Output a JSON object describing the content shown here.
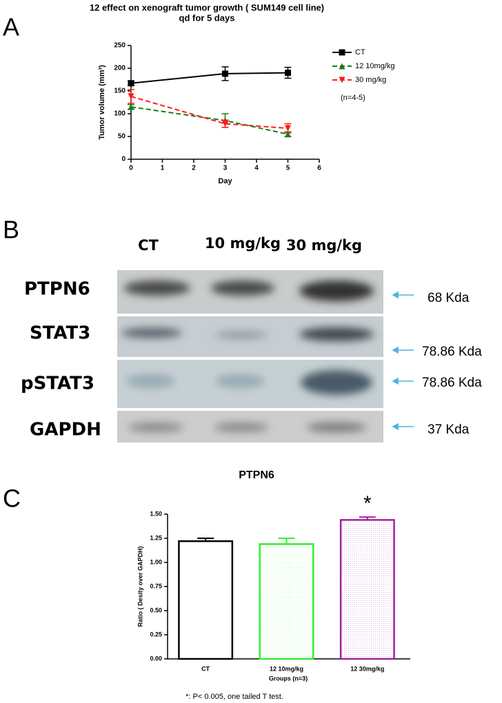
{
  "panel_labels": [
    "A",
    "B",
    "C"
  ],
  "chart_data": [
    {
      "type": "line",
      "title": "12  effect on xenograft tumor growth ( SUM149  cell line)",
      "subtitle": "qd for 5 days",
      "x": [
        0,
        3,
        5
      ],
      "series": [
        {
          "name": "CT",
          "color": "#000000",
          "marker": "square",
          "linestyle": "solid",
          "values": [
            167,
            188,
            190
          ],
          "errors": [
            5,
            15,
            12
          ]
        },
        {
          "name": "12 10mg/kg",
          "color": "#1a7a1a",
          "marker": "triangle",
          "linestyle": "dashed",
          "values": [
            115,
            85,
            55
          ],
          "errors": [
            5,
            15,
            5
          ]
        },
        {
          "name": "30 mg/kg",
          "color": "#ff1a1a",
          "marker": "triangle-down",
          "linestyle": "dashed",
          "values": [
            138,
            78,
            68
          ],
          "errors": [
            15,
            8,
            10
          ]
        }
      ],
      "xlabel": "Day",
      "ylabel": "Tumor volume (mm³)",
      "xlim": [
        0,
        6
      ],
      "xticks": [
        0,
        1,
        2,
        3,
        4,
        5,
        6
      ],
      "ylim": [
        0,
        250
      ],
      "yticks": [
        0,
        50,
        100,
        150,
        200,
        250
      ],
      "annotation": "(n=4-5)"
    },
    {
      "type": "bar",
      "title": "PTPN6",
      "categories": [
        "CT",
        "12  10mg/kg",
        "12  30mg/kg"
      ],
      "values": [
        1.22,
        1.19,
        1.44
      ],
      "errors": [
        0.03,
        0.06,
        0.03
      ],
      "colors": [
        "#000000",
        "#33ee33",
        "#a0209a"
      ],
      "xlabel": "Groups    (n=3)",
      "ylabel": "Ratio ( Desity over GAPDH)",
      "ylim": [
        0,
        1.5
      ],
      "yticks": [
        {
          "value": 0,
          "label": "0.00"
        },
        {
          "value": 0.25,
          "label": "0.25"
        },
        {
          "value": 0.5,
          "label": "0.50"
        },
        {
          "value": 0.75,
          "label": "0.75"
        },
        {
          "value": 1,
          "label": "1.00"
        },
        {
          "value": 1.25,
          "label": "1.25"
        },
        {
          "value": 1.5,
          "label": "1.50"
        }
      ],
      "annotation": "*"
    }
  ],
  "blot": {
    "lanes": [
      "CT",
      "10 mg/kg",
      "30 mg/kg"
    ],
    "rows": [
      {
        "protein": "PTPN6",
        "size": "68 Kda"
      },
      {
        "protein": "STAT3",
        "size": "78.86 Kda"
      },
      {
        "protein": "pSTAT3",
        "size": "78.86 Kda"
      },
      {
        "protein": "GAPDH",
        "size": "37 Kda"
      }
    ]
  },
  "footnote": "*:   P< 0.005, one tailed T test."
}
